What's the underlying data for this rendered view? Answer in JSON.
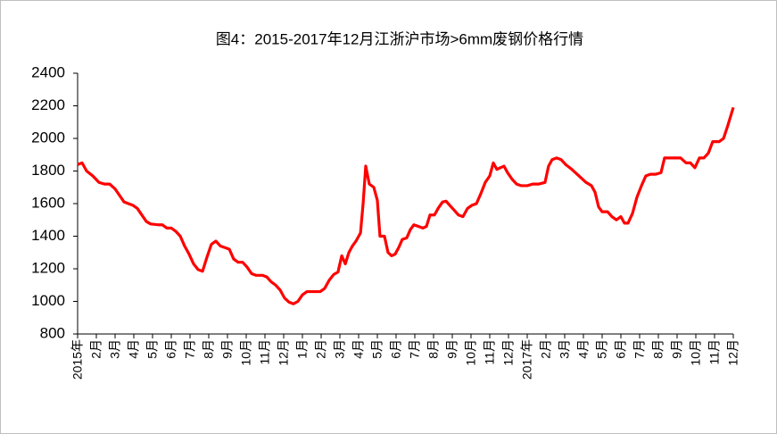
{
  "chart_data": {
    "type": "line",
    "title": "图4：2015-2017年12月江浙沪市场>6mm废钢价格行情",
    "xlim": [
      0,
      35
    ],
    "xticks": [
      {
        "value": 0,
        "label": "2015年"
      },
      {
        "value": 1,
        "label": "2月"
      },
      {
        "value": 2,
        "label": "3月"
      },
      {
        "value": 3,
        "label": "4月"
      },
      {
        "value": 4,
        "label": "5月"
      },
      {
        "value": 5,
        "label": "6月"
      },
      {
        "value": 6,
        "label": "7月"
      },
      {
        "value": 7,
        "label": "8月"
      },
      {
        "value": 8,
        "label": "9月"
      },
      {
        "value": 9,
        "label": "10月"
      },
      {
        "value": 10,
        "label": "11月"
      },
      {
        "value": 11,
        "label": "12月"
      },
      {
        "value": 12,
        "label": "1月"
      },
      {
        "value": 13,
        "label": "2月"
      },
      {
        "value": 14,
        "label": "3月"
      },
      {
        "value": 15,
        "label": "4月"
      },
      {
        "value": 16,
        "label": "5月"
      },
      {
        "value": 17,
        "label": "6月"
      },
      {
        "value": 18,
        "label": "7月"
      },
      {
        "value": 19,
        "label": "8月"
      },
      {
        "value": 20,
        "label": "9月"
      },
      {
        "value": 21,
        "label": "10月"
      },
      {
        "value": 22,
        "label": "11月"
      },
      {
        "value": 23,
        "label": "12月"
      },
      {
        "value": 24,
        "label": "2017年"
      },
      {
        "value": 25,
        "label": "2月"
      },
      {
        "value": 26,
        "label": "3月"
      },
      {
        "value": 27,
        "label": "4月"
      },
      {
        "value": 28,
        "label": "5月"
      },
      {
        "value": 29,
        "label": "6月"
      },
      {
        "value": 30,
        "label": "7月"
      },
      {
        "value": 31,
        "label": "8月"
      },
      {
        "value": 32,
        "label": "9月"
      },
      {
        "value": 33,
        "label": "10月"
      },
      {
        "value": 34,
        "label": "11月"
      },
      {
        "value": 35,
        "label": "12月"
      }
    ],
    "ylim": [
      800,
      2400
    ],
    "yticks": [
      800,
      1000,
      1200,
      1400,
      1600,
      1800,
      2000,
      2200,
      2400
    ],
    "series": [
      {
        "color": "#ff0000",
        "x": [
          0,
          0.24,
          0.48,
          0.81,
          1.14,
          1.43,
          1.71,
          2.0,
          2.24,
          2.48,
          2.71,
          2.95,
          3.19,
          3.43,
          3.67,
          3.9,
          4.29,
          4.52,
          4.76,
          5.0,
          5.24,
          5.48,
          5.71,
          5.95,
          6.19,
          6.43,
          6.67,
          6.9,
          7.14,
          7.38,
          7.62,
          7.86,
          8.1,
          8.33,
          8.57,
          8.81,
          9.05,
          9.29,
          9.52,
          9.86,
          10.1,
          10.33,
          10.57,
          10.81,
          11.05,
          11.29,
          11.52,
          11.76,
          12.0,
          12.24,
          12.48,
          12.71,
          12.95,
          13.19,
          13.43,
          13.67,
          13.9,
          14.1,
          14.29,
          14.48,
          14.67,
          14.86,
          15.1,
          15.24,
          15.38,
          15.57,
          15.81,
          16.0,
          16.14,
          16.38,
          16.57,
          16.76,
          16.95,
          17.14,
          17.33,
          17.57,
          17.76,
          17.95,
          18.19,
          18.43,
          18.62,
          18.81,
          19.05,
          19.24,
          19.48,
          19.67,
          19.86,
          20.1,
          20.33,
          20.57,
          20.81,
          21.05,
          21.29,
          21.52,
          21.76,
          22.0,
          22.19,
          22.38,
          22.57,
          22.76,
          22.95,
          23.19,
          23.43,
          23.67,
          24.0,
          24.29,
          24.62,
          24.95,
          25.14,
          25.33,
          25.57,
          25.81,
          26.05,
          26.38,
          26.76,
          27.14,
          27.43,
          27.62,
          27.81,
          28.0,
          28.29,
          28.52,
          28.76,
          29.0,
          29.19,
          29.38,
          29.62,
          29.86,
          30.1,
          30.33,
          30.57,
          30.86,
          31.14,
          31.33,
          31.62,
          31.9,
          32.19,
          32.48,
          32.71,
          32.95,
          33.19,
          33.43,
          33.67,
          33.9,
          34.24,
          34.48,
          34.71,
          35.0
        ],
        "values": [
          1840,
          1850,
          1800,
          1770,
          1730,
          1720,
          1720,
          1690,
          1650,
          1610,
          1600,
          1590,
          1570,
          1530,
          1490,
          1475,
          1470,
          1470,
          1450,
          1450,
          1430,
          1400,
          1340,
          1290,
          1230,
          1195,
          1185,
          1270,
          1350,
          1370,
          1340,
          1330,
          1320,
          1260,
          1240,
          1240,
          1210,
          1170,
          1160,
          1160,
          1150,
          1120,
          1100,
          1070,
          1020,
          995,
          985,
          1000,
          1040,
          1060,
          1060,
          1060,
          1060,
          1080,
          1130,
          1165,
          1180,
          1280,
          1230,
          1300,
          1340,
          1370,
          1420,
          1600,
          1830,
          1720,
          1700,
          1620,
          1400,
          1400,
          1300,
          1280,
          1290,
          1330,
          1380,
          1390,
          1440,
          1470,
          1460,
          1450,
          1460,
          1530,
          1530,
          1570,
          1610,
          1615,
          1590,
          1560,
          1530,
          1520,
          1570,
          1590,
          1600,
          1660,
          1730,
          1770,
          1850,
          1810,
          1820,
          1830,
          1790,
          1750,
          1720,
          1710,
          1710,
          1720,
          1720,
          1730,
          1830,
          1870,
          1880,
          1870,
          1840,
          1810,
          1770,
          1730,
          1710,
          1670,
          1580,
          1550,
          1550,
          1520,
          1500,
          1520,
          1480,
          1480,
          1540,
          1640,
          1710,
          1770,
          1780,
          1780,
          1790,
          1880,
          1880,
          1880,
          1880,
          1850,
          1850,
          1820,
          1880,
          1880,
          1910,
          1980,
          1980,
          2000,
          2080,
          2190
        ]
      }
    ]
  }
}
